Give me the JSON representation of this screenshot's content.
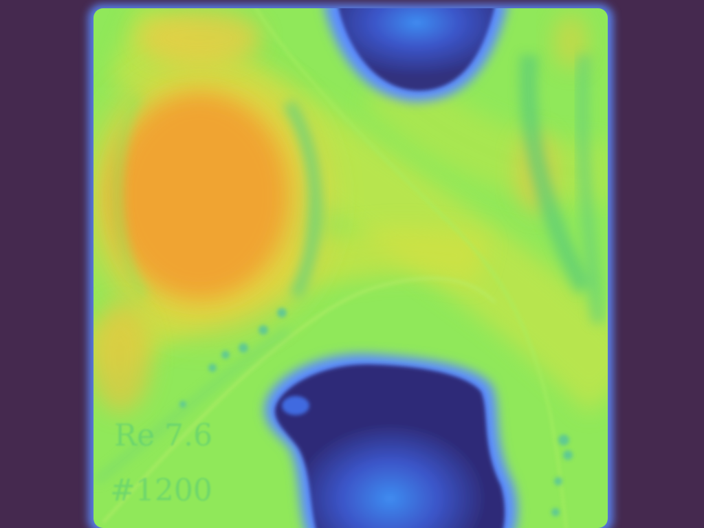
{
  "overlay": {
    "reynolds_label": "Re 7.6",
    "step_label": "#1200"
  },
  "colors": {
    "background": "#45294f",
    "field_edge": "#5b8cff",
    "field_base": "#8ee65a",
    "warm_core": "#f0a030",
    "warm_mid": "#e8d040",
    "cool_core": "#2a2c7a",
    "cool_glow": "#3f8cf0",
    "cyan_band": "#52c87a",
    "overlay_text": "#52c87a"
  }
}
